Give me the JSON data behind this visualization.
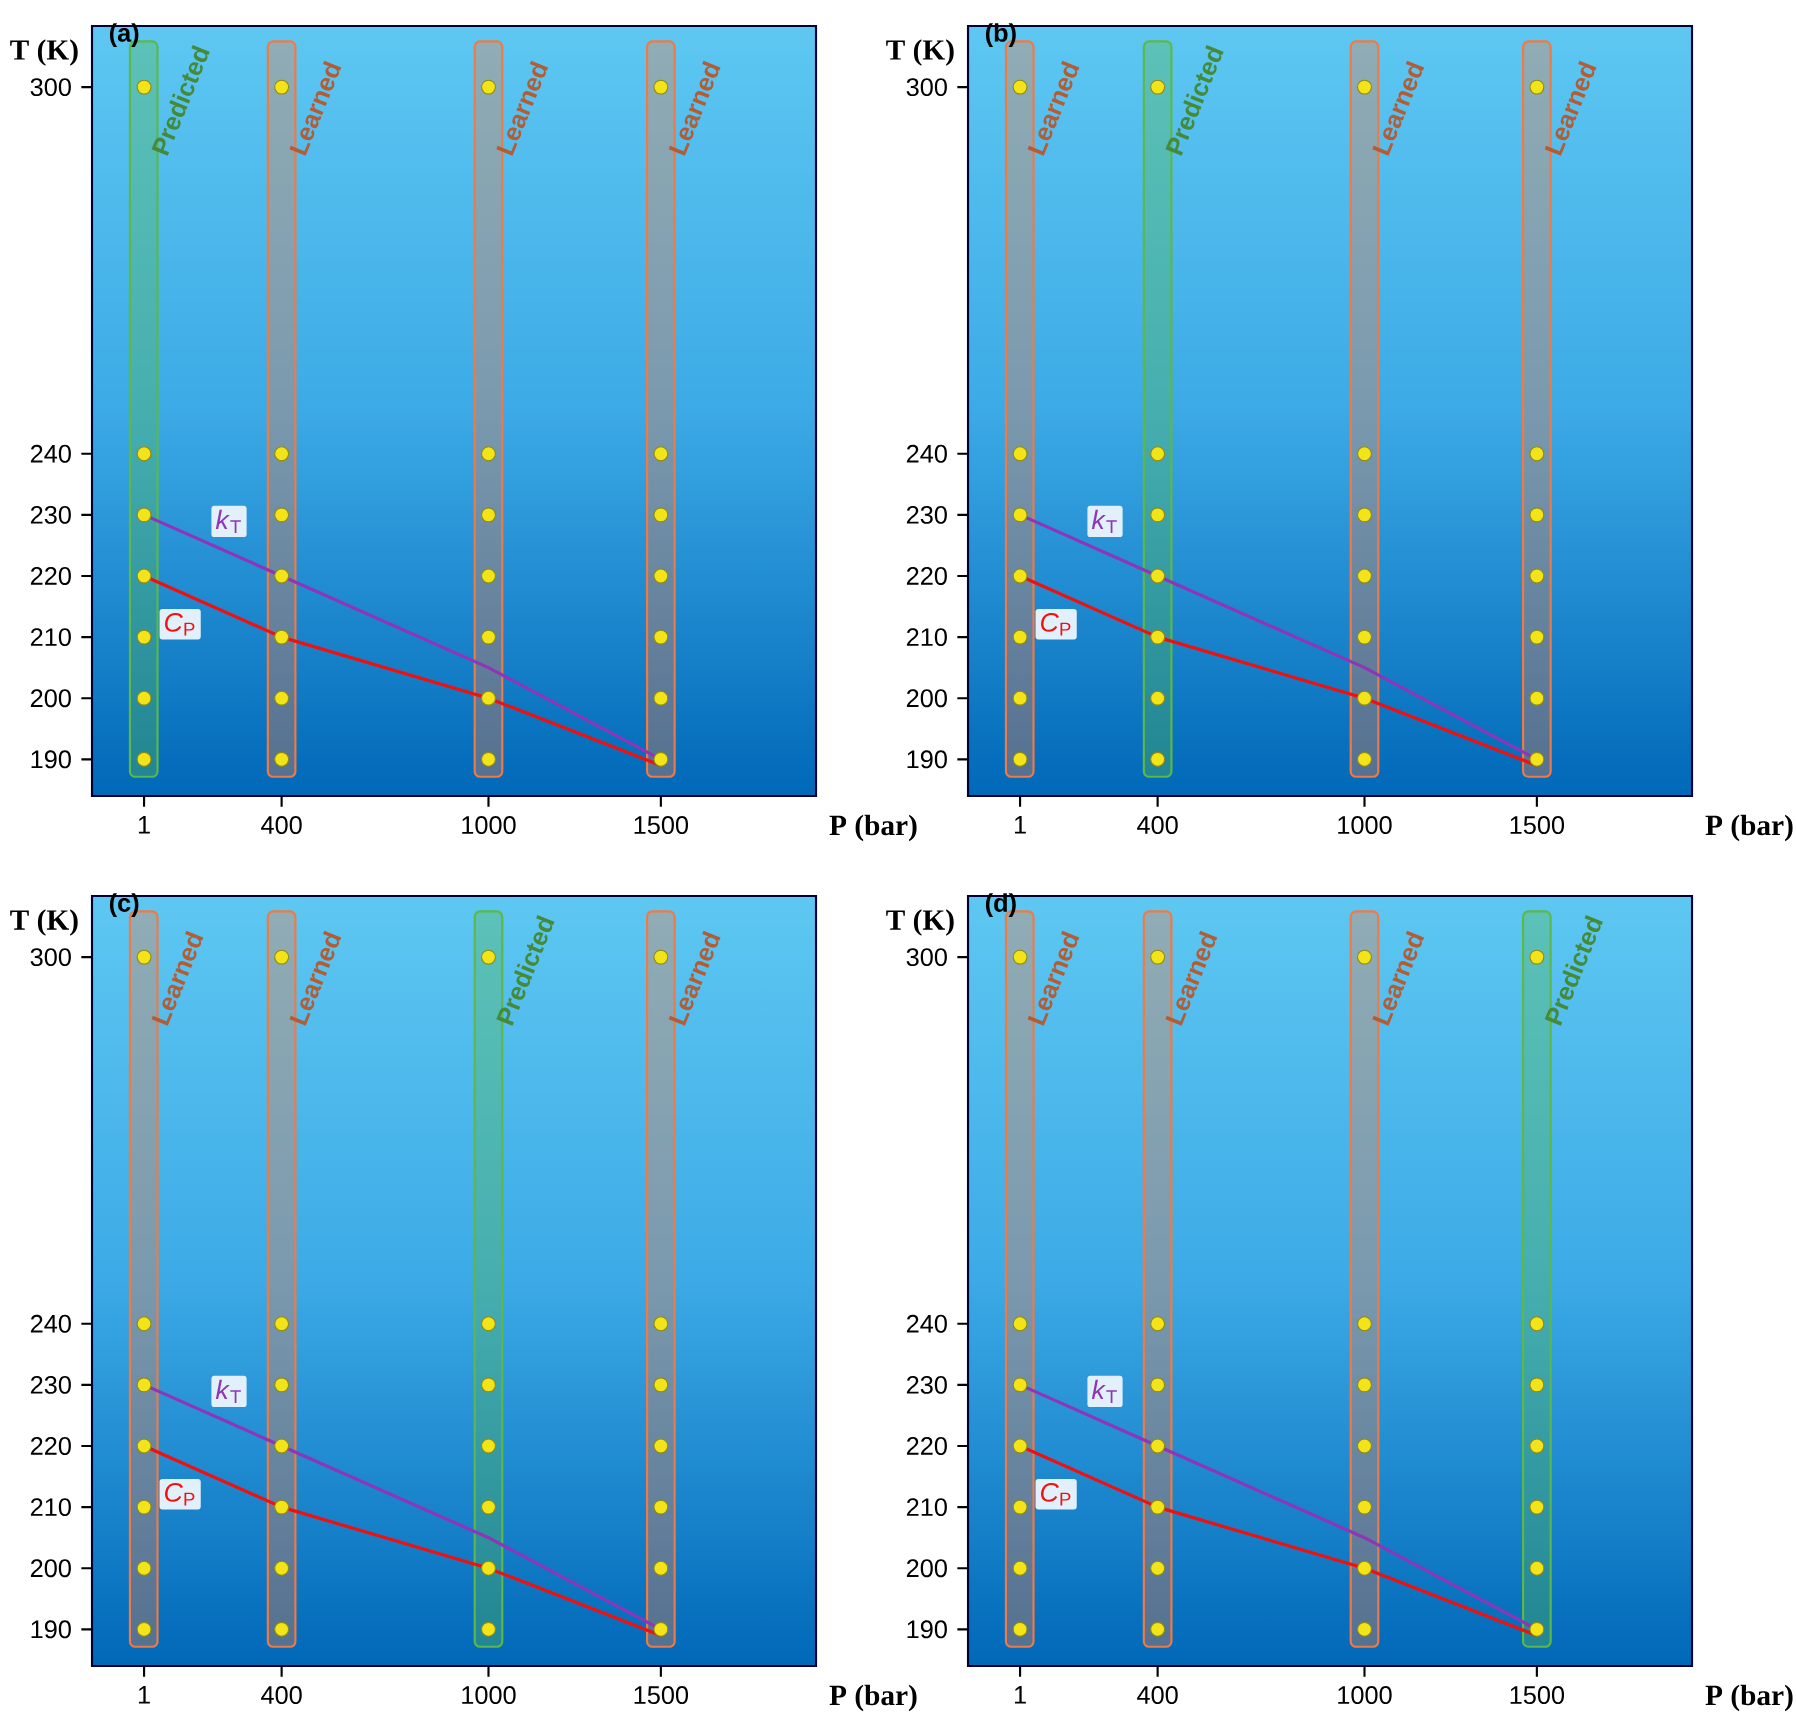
{
  "chart_data": [
    {
      "type": "scatter",
      "title": "(a)",
      "xlabel": "P (bar)",
      "ylabel": "T (K)",
      "xlim": [
        -150,
        1950
      ],
      "xticks": [
        1,
        400,
        1000,
        1500
      ],
      "ylim": [
        184,
        310
      ],
      "yticks": [
        190,
        200,
        210,
        220,
        230,
        240,
        300
      ],
      "marker": "circle",
      "series": [
        {
          "type": "scatter",
          "color": "#f2e418",
          "x": [
            1,
            1,
            1,
            1,
            1,
            1,
            1,
            400,
            400,
            400,
            400,
            400,
            400,
            400,
            1000,
            1000,
            1000,
            1000,
            1000,
            1000,
            1000,
            1500,
            1500,
            1500,
            1500,
            1500,
            1500,
            1500
          ],
          "values": [
            190,
            200,
            210,
            220,
            230,
            240,
            300,
            190,
            200,
            210,
            220,
            230,
            240,
            300,
            190,
            200,
            210,
            220,
            230,
            240,
            300,
            190,
            200,
            210,
            220,
            230,
            240,
            300
          ]
        },
        {
          "type": "line",
          "name": "*k*$_{T}$",
          "color": "#8e35b8",
          "marker": "none",
          "x": [
            1,
            400,
            1000,
            1500
          ],
          "values": [
            230,
            220,
            205,
            190
          ]
        },
        {
          "type": "line",
          "name": "*C*$_{P}$",
          "color": "#f01010",
          "marker": "none",
          "x": [
            1,
            400,
            1000,
            1500
          ],
          "values": [
            220,
            210,
            200,
            189
          ]
        }
      ],
      "bands": [
        {
          "axis": "x",
          "from": -40,
          "to": 40,
          "label": "Predicted",
          "color": "#5cb84a"
        },
        {
          "axis": "x",
          "from": 360,
          "to": 440,
          "label": "Learned",
          "color": "#f07a45"
        },
        {
          "axis": "x",
          "from": 960,
          "to": 1040,
          "label": "Learned",
          "color": "#f07a45"
        },
        {
          "axis": "x",
          "from": 1460,
          "to": 1540,
          "label": "Learned",
          "color": "#f07a45"
        }
      ]
    },
    {
      "type": "scatter",
      "title": "(b)",
      "xlabel": "P (bar)",
      "ylabel": "T (K)",
      "xlim": [
        -150,
        1950
      ],
      "xticks": [
        1,
        400,
        1000,
        1500
      ],
      "ylim": [
        184,
        310
      ],
      "yticks": [
        190,
        200,
        210,
        220,
        230,
        240,
        300
      ],
      "marker": "circle",
      "series": [
        {
          "type": "scatter",
          "color": "#f2e418",
          "x": [
            1,
            1,
            1,
            1,
            1,
            1,
            1,
            400,
            400,
            400,
            400,
            400,
            400,
            400,
            1000,
            1000,
            1000,
            1000,
            1000,
            1000,
            1000,
            1500,
            1500,
            1500,
            1500,
            1500,
            1500,
            1500
          ],
          "values": [
            190,
            200,
            210,
            220,
            230,
            240,
            300,
            190,
            200,
            210,
            220,
            230,
            240,
            300,
            190,
            200,
            210,
            220,
            230,
            240,
            300,
            190,
            200,
            210,
            220,
            230,
            240,
            300
          ]
        },
        {
          "type": "line",
          "name": "*k*$_{T}$",
          "color": "#8e35b8",
          "marker": "none",
          "x": [
            1,
            400,
            1000,
            1500
          ],
          "values": [
            230,
            220,
            205,
            190
          ]
        },
        {
          "type": "line",
          "name": "*C*$_{P}$",
          "color": "#f01010",
          "marker": "none",
          "x": [
            1,
            400,
            1000,
            1500
          ],
          "values": [
            220,
            210,
            200,
            189
          ]
        }
      ],
      "bands": [
        {
          "axis": "x",
          "from": -40,
          "to": 40,
          "label": "Learned",
          "color": "#f07a45"
        },
        {
          "axis": "x",
          "from": 360,
          "to": 440,
          "label": "Predicted",
          "color": "#5cb84a"
        },
        {
          "axis": "x",
          "from": 960,
          "to": 1040,
          "label": "Learned",
          "color": "#f07a45"
        },
        {
          "axis": "x",
          "from": 1460,
          "to": 1540,
          "label": "Learned",
          "color": "#f07a45"
        }
      ]
    },
    {
      "type": "scatter",
      "title": "(c)",
      "xlabel": "P (bar)",
      "ylabel": "T (K)",
      "xlim": [
        -150,
        1950
      ],
      "xticks": [
        1,
        400,
        1000,
        1500
      ],
      "ylim": [
        184,
        310
      ],
      "yticks": [
        190,
        200,
        210,
        220,
        230,
        240,
        300
      ],
      "marker": "circle",
      "series": [
        {
          "type": "scatter",
          "color": "#f2e418",
          "x": [
            1,
            1,
            1,
            1,
            1,
            1,
            1,
            400,
            400,
            400,
            400,
            400,
            400,
            400,
            1000,
            1000,
            1000,
            1000,
            1000,
            1000,
            1000,
            1500,
            1500,
            1500,
            1500,
            1500,
            1500,
            1500
          ],
          "values": [
            190,
            200,
            210,
            220,
            230,
            240,
            300,
            190,
            200,
            210,
            220,
            230,
            240,
            300,
            190,
            200,
            210,
            220,
            230,
            240,
            300,
            190,
            200,
            210,
            220,
            230,
            240,
            300
          ]
        },
        {
          "type": "line",
          "name": "*k*$_{T}$",
          "color": "#8e35b8",
          "marker": "none",
          "x": [
            1,
            400,
            1000,
            1500
          ],
          "values": [
            230,
            220,
            205,
            190
          ]
        },
        {
          "type": "line",
          "name": "*C*$_{P}$",
          "color": "#f01010",
          "marker": "none",
          "x": [
            1,
            400,
            1000,
            1500
          ],
          "values": [
            220,
            210,
            200,
            189
          ]
        }
      ],
      "bands": [
        {
          "axis": "x",
          "from": -40,
          "to": 40,
          "label": "Learned",
          "color": "#f07a45"
        },
        {
          "axis": "x",
          "from": 360,
          "to": 440,
          "label": "Learned",
          "color": "#f07a45"
        },
        {
          "axis": "x",
          "from": 960,
          "to": 1040,
          "label": "Predicted",
          "color": "#5cb84a"
        },
        {
          "axis": "x",
          "from": 1460,
          "to": 1540,
          "label": "Learned",
          "color": "#f07a45"
        }
      ]
    },
    {
      "type": "scatter",
      "title": "(d)",
      "xlabel": "P (bar)",
      "ylabel": "T (K)",
      "xlim": [
        -150,
        1950
      ],
      "xticks": [
        1,
        400,
        1000,
        1500
      ],
      "ylim": [
        184,
        310
      ],
      "yticks": [
        190,
        200,
        210,
        220,
        230,
        240,
        300
      ],
      "marker": "circle",
      "series": [
        {
          "type": "scatter",
          "color": "#f2e418",
          "x": [
            1,
            1,
            1,
            1,
            1,
            1,
            1,
            400,
            400,
            400,
            400,
            400,
            400,
            400,
            1000,
            1000,
            1000,
            1000,
            1000,
            1000,
            1000,
            1500,
            1500,
            1500,
            1500,
            1500,
            1500,
            1500
          ],
          "values": [
            190,
            200,
            210,
            220,
            230,
            240,
            300,
            190,
            200,
            210,
            220,
            230,
            240,
            300,
            190,
            200,
            210,
            220,
            230,
            240,
            300,
            190,
            200,
            210,
            220,
            230,
            240,
            300
          ]
        },
        {
          "type": "line",
          "name": "*k*$_{T}$",
          "color": "#8e35b8",
          "marker": "none",
          "x": [
            1,
            400,
            1000,
            1500
          ],
          "values": [
            230,
            220,
            205,
            190
          ]
        },
        {
          "type": "line",
          "name": "*C*$_{P}$",
          "color": "#f01010",
          "marker": "none",
          "x": [
            1,
            400,
            1000,
            1500
          ],
          "values": [
            220,
            210,
            200,
            189
          ]
        }
      ],
      "bands": [
        {
          "axis": "x",
          "from": -40,
          "to": 40,
          "label": "Learned",
          "color": "#f07a45"
        },
        {
          "axis": "x",
          "from": 360,
          "to": 440,
          "label": "Learned",
          "color": "#f07a45"
        },
        {
          "axis": "x",
          "from": 960,
          "to": 1040,
          "label": "Learned",
          "color": "#f07a45"
        },
        {
          "axis": "x",
          "from": 1460,
          "to": 1540,
          "label": "Predicted",
          "color": "#5cb84a"
        }
      ]
    }
  ]
}
